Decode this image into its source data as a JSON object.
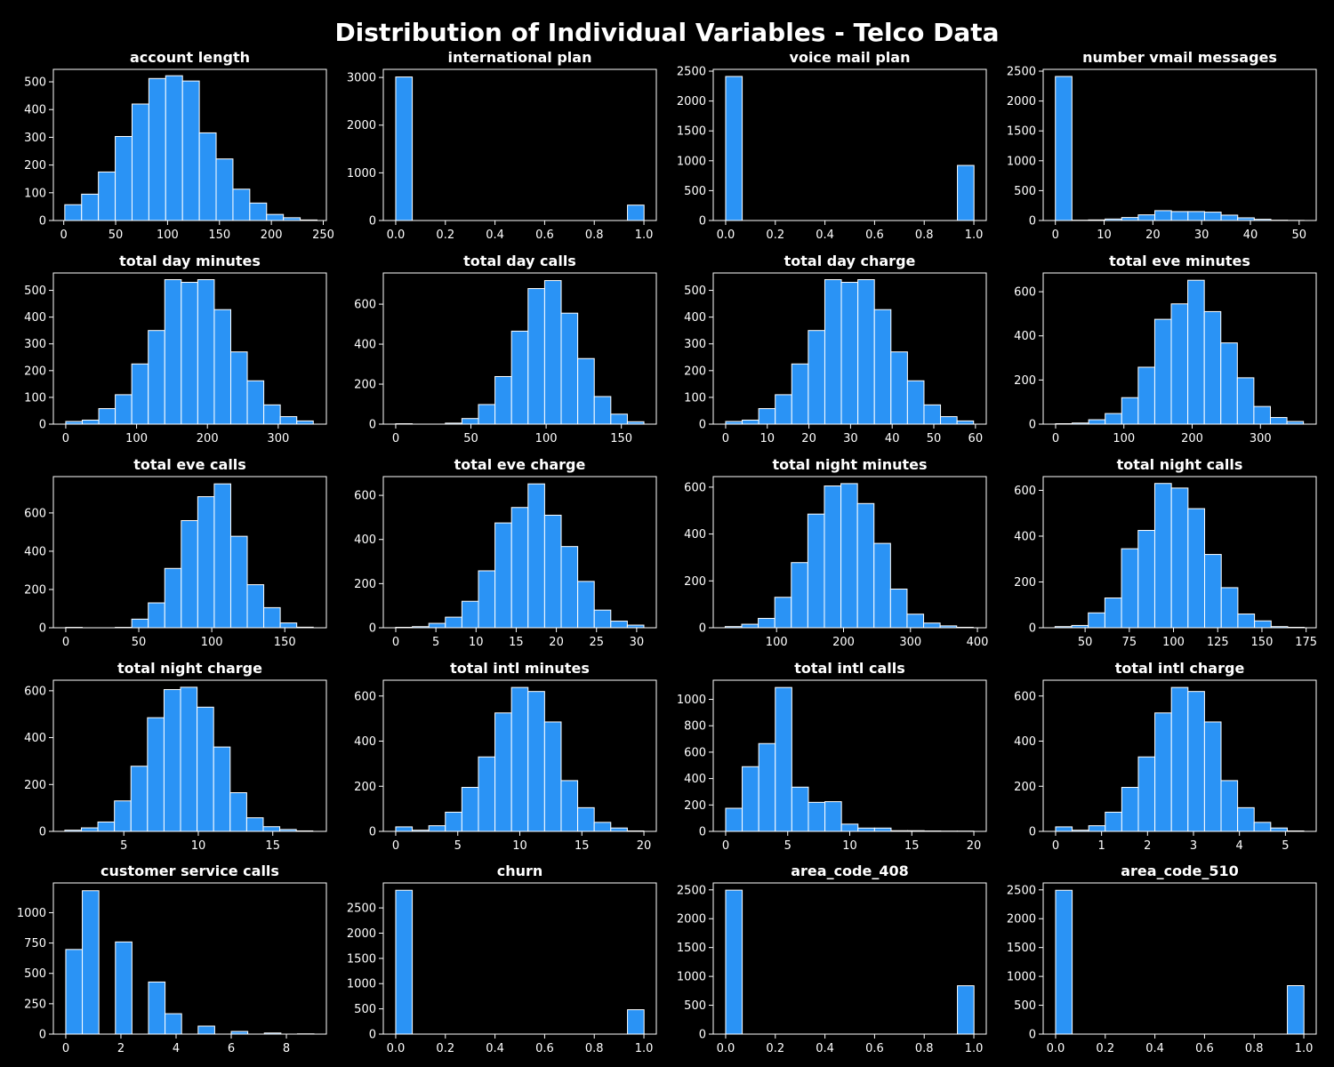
{
  "title": "Distribution of Individual Variables - Telco Data",
  "colors": {
    "background": "#000000",
    "bar_fill": "#2a93f5",
    "bar_edge": "#ffffff",
    "text": "#ffffff"
  },
  "chart_data": [
    {
      "type": "bar",
      "title": "account length",
      "xlim": [
        -10,
        253
      ],
      "ylim": [
        0,
        545
      ],
      "xticks": [
        0,
        50,
        100,
        150,
        200,
        250
      ],
      "yticks": [
        0,
        100,
        200,
        300,
        400,
        500
      ],
      "bin_start": 1,
      "bin_width": 16.2,
      "values": [
        57,
        95,
        175,
        303,
        420,
        512,
        522,
        503,
        316,
        222,
        113,
        63,
        22,
        10,
        2
      ]
    },
    {
      "type": "bar",
      "title": "international plan",
      "xlim": [
        -0.05,
        1.05
      ],
      "ylim": [
        0,
        3170
      ],
      "xticks": [
        0.0,
        0.2,
        0.4,
        0.6,
        0.8,
        1.0
      ],
      "yticks": [
        0,
        1000,
        2000,
        3000
      ],
      "bin_start": 0,
      "bin_width": 0.0667,
      "values": [
        3010,
        0,
        0,
        0,
        0,
        0,
        0,
        0,
        0,
        0,
        0,
        0,
        0,
        0,
        323
      ]
    },
    {
      "type": "bar",
      "title": "voice mail plan",
      "xlim": [
        -0.05,
        1.05
      ],
      "ylim": [
        0,
        2530
      ],
      "xticks": [
        0.0,
        0.2,
        0.4,
        0.6,
        0.8,
        1.0
      ],
      "yticks": [
        0,
        500,
        1000,
        1500,
        2000,
        2500
      ],
      "bin_start": 0,
      "bin_width": 0.0667,
      "values": [
        2411,
        0,
        0,
        0,
        0,
        0,
        0,
        0,
        0,
        0,
        0,
        0,
        0,
        0,
        922
      ]
    },
    {
      "type": "bar",
      "title": "number vmail messages",
      "xlim": [
        -2.5,
        53.5
      ],
      "ylim": [
        0,
        2530
      ],
      "xticks": [
        0,
        10,
        20,
        30,
        40,
        50
      ],
      "yticks": [
        0,
        500,
        1000,
        1500,
        2000,
        2500
      ],
      "bin_start": 0,
      "bin_width": 3.4,
      "values": [
        2411,
        5,
        10,
        25,
        50,
        95,
        165,
        150,
        150,
        140,
        90,
        45,
        20,
        5,
        2
      ]
    },
    {
      "type": "bar",
      "title": "total day minutes",
      "xlim": [
        -17.5,
        368
      ],
      "ylim": [
        0,
        565
      ],
      "xticks": [
        0,
        100,
        200,
        300
      ],
      "yticks": [
        0,
        100,
        200,
        300,
        400,
        500
      ],
      "bin_start": 0,
      "bin_width": 23.3,
      "values": [
        10,
        15,
        58,
        110,
        225,
        350,
        540,
        530,
        540,
        428,
        270,
        162,
        72,
        28,
        12
      ]
    },
    {
      "type": "bar",
      "title": "total day calls",
      "xlim": [
        -8.25,
        173.25
      ],
      "ylim": [
        0,
        756
      ],
      "xticks": [
        0,
        50,
        100,
        150
      ],
      "yticks": [
        0,
        200,
        400,
        600
      ],
      "bin_start": 0,
      "bin_width": 11,
      "values": [
        2,
        0,
        0,
        5,
        28,
        98,
        238,
        465,
        678,
        718,
        555,
        328,
        138,
        50,
        12
      ]
    },
    {
      "type": "bar",
      "title": "total day charge",
      "xlim": [
        -2.98,
        62.6
      ],
      "ylim": [
        0,
        565
      ],
      "xticks": [
        0,
        10,
        20,
        30,
        40,
        50,
        60
      ],
      "yticks": [
        0,
        100,
        200,
        300,
        400,
        500
      ],
      "bin_start": 0,
      "bin_width": 3.97,
      "values": [
        10,
        15,
        58,
        110,
        225,
        350,
        540,
        530,
        540,
        428,
        270,
        162,
        72,
        28,
        12
      ]
    },
    {
      "type": "bar",
      "title": "total eve minutes",
      "xlim": [
        -18.2,
        381.7
      ],
      "ylim": [
        0,
        685
      ],
      "xticks": [
        0,
        100,
        200,
        300
      ],
      "yticks": [
        0,
        200,
        400,
        600
      ],
      "bin_start": 0,
      "bin_width": 24.2,
      "values": [
        2,
        5,
        20,
        48,
        120,
        258,
        475,
        545,
        652,
        510,
        368,
        210,
        80,
        30,
        12
      ]
    },
    {
      "type": "bar",
      "title": "total eve calls",
      "xlim": [
        -8.5,
        178.5
      ],
      "ylim": [
        0,
        790
      ],
      "xticks": [
        0,
        50,
        100,
        150
      ],
      "yticks": [
        0,
        200,
        400,
        600
      ],
      "bin_start": 0,
      "bin_width": 11.3,
      "values": [
        2,
        0,
        0,
        2,
        45,
        130,
        310,
        560,
        685,
        752,
        478,
        225,
        105,
        25,
        3
      ]
    },
    {
      "type": "bar",
      "title": "total eve charge",
      "xlim": [
        -1.55,
        32.45
      ],
      "ylim": [
        0,
        685
      ],
      "xticks": [
        0,
        5,
        10,
        15,
        20,
        25,
        30
      ],
      "yticks": [
        0,
        200,
        400,
        600
      ],
      "bin_start": 0,
      "bin_width": 2.06,
      "values": [
        2,
        5,
        20,
        48,
        120,
        258,
        475,
        545,
        652,
        510,
        368,
        210,
        80,
        30,
        12
      ]
    },
    {
      "type": "bar",
      "title": "total night minutes",
      "xlim": [
        5.4,
        413.2
      ],
      "ylim": [
        0,
        645
      ],
      "xticks": [
        100,
        200,
        300,
        400
      ],
      "yticks": [
        0,
        200,
        400,
        600
      ],
      "bin_start": 23.2,
      "bin_width": 24.7,
      "values": [
        5,
        15,
        40,
        130,
        278,
        485,
        605,
        615,
        530,
        360,
        165,
        58,
        20,
        8,
        2
      ]
    },
    {
      "type": "bar",
      "title": "total night calls",
      "xlim": [
        26.3,
        180.7
      ],
      "ylim": [
        0,
        660
      ],
      "xticks": [
        50,
        75,
        100,
        125,
        150,
        175
      ],
      "yticks": [
        0,
        200,
        400,
        600
      ],
      "bin_start": 33,
      "bin_width": 9.4,
      "values": [
        5,
        10,
        65,
        130,
        345,
        425,
        630,
        610,
        520,
        320,
        175,
        60,
        30,
        5,
        2
      ]
    },
    {
      "type": "bar",
      "title": "total night charge",
      "xlim": [
        0.27,
        18.6
      ],
      "ylim": [
        0,
        645
      ],
      "xticks": [
        5,
        10,
        15
      ],
      "yticks": [
        0,
        200,
        400,
        600
      ],
      "bin_start": 1.04,
      "bin_width": 1.11,
      "values": [
        5,
        15,
        40,
        130,
        278,
        485,
        605,
        615,
        530,
        360,
        165,
        58,
        20,
        8,
        2
      ]
    },
    {
      "type": "bar",
      "title": "total intl minutes",
      "xlim": [
        -1,
        21
      ],
      "ylim": [
        0,
        670
      ],
      "xticks": [
        0,
        5,
        10,
        15,
        20
      ],
      "yticks": [
        0,
        200,
        400,
        600
      ],
      "bin_start": 0,
      "bin_width": 1.333,
      "values": [
        20,
        5,
        25,
        85,
        195,
        330,
        525,
        638,
        620,
        485,
        225,
        105,
        40,
        15,
        2
      ]
    },
    {
      "type": "bar",
      "title": "total intl calls",
      "xlim": [
        -1,
        21
      ],
      "ylim": [
        0,
        1145
      ],
      "xticks": [
        0,
        5,
        10,
        15,
        20
      ],
      "yticks": [
        0,
        200,
        400,
        600,
        800,
        1000
      ],
      "bin_start": 0,
      "bin_width": 1.333,
      "values": [
        175,
        490,
        665,
        1090,
        335,
        220,
        225,
        55,
        25,
        25,
        5,
        5,
        3,
        2,
        2
      ]
    },
    {
      "type": "bar",
      "title": "total intl charge",
      "xlim": [
        -0.27,
        5.67
      ],
      "ylim": [
        0,
        670
      ],
      "xticks": [
        0,
        1,
        2,
        3,
        4,
        5
      ],
      "yticks": [
        0,
        200,
        400,
        600
      ],
      "bin_start": 0,
      "bin_width": 0.36,
      "values": [
        20,
        5,
        25,
        85,
        195,
        330,
        525,
        638,
        620,
        485,
        225,
        105,
        40,
        15,
        2
      ]
    },
    {
      "type": "bar",
      "title": "customer service calls",
      "xlim": [
        -0.45,
        9.45
      ],
      "ylim": [
        0,
        1245
      ],
      "xticks": [
        0,
        2,
        4,
        6,
        8
      ],
      "yticks": [
        0,
        250,
        500,
        750,
        1000
      ],
      "bin_start": 0,
      "bin_width": 0.6,
      "values": [
        697,
        1181,
        0,
        759,
        0,
        429,
        168,
        0,
        66,
        0,
        22,
        0,
        9,
        0,
        2
      ]
    },
    {
      "type": "bar",
      "title": "churn",
      "xlim": [
        -0.05,
        1.05
      ],
      "ylim": [
        0,
        2995
      ],
      "xticks": [
        0.0,
        0.2,
        0.4,
        0.6,
        0.8,
        1.0
      ],
      "yticks": [
        0,
        500,
        1000,
        1500,
        2000,
        2500
      ],
      "bin_start": 0,
      "bin_width": 0.0667,
      "values": [
        2850,
        0,
        0,
        0,
        0,
        0,
        0,
        0,
        0,
        0,
        0,
        0,
        0,
        0,
        483
      ]
    },
    {
      "type": "bar",
      "title": "area_code_408",
      "xlim": [
        -0.05,
        1.05
      ],
      "ylim": [
        0,
        2620
      ],
      "xticks": [
        0.0,
        0.2,
        0.4,
        0.6,
        0.8,
        1.0
      ],
      "yticks": [
        0,
        500,
        1000,
        1500,
        2000,
        2500
      ],
      "bin_start": 0,
      "bin_width": 0.0667,
      "values": [
        2495,
        0,
        0,
        0,
        0,
        0,
        0,
        0,
        0,
        0,
        0,
        0,
        0,
        0,
        838
      ]
    },
    {
      "type": "bar",
      "title": "area_code_510",
      "xlim": [
        -0.05,
        1.05
      ],
      "ylim": [
        0,
        2620
      ],
      "xticks": [
        0.0,
        0.2,
        0.4,
        0.6,
        0.8,
        1.0
      ],
      "yticks": [
        0,
        500,
        1000,
        1500,
        2000,
        2500
      ],
      "bin_start": 0,
      "bin_width": 0.0667,
      "values": [
        2493,
        0,
        0,
        0,
        0,
        0,
        0,
        0,
        0,
        0,
        0,
        0,
        0,
        0,
        840
      ]
    }
  ]
}
